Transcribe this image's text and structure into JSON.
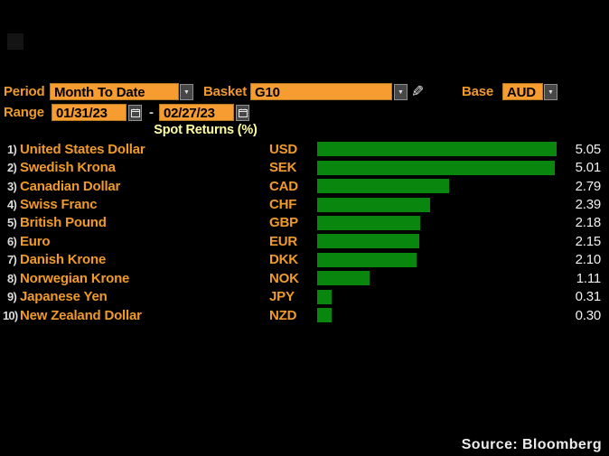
{
  "controls": {
    "dropdown_arrow": "▼",
    "edit_glyph": "✎",
    "period": {
      "label": "Period",
      "value": "Month To Date"
    },
    "basket": {
      "label": "Basket",
      "value": "G10"
    },
    "base": {
      "label": "Base",
      "value": "AUD"
    },
    "range": {
      "label": "Range",
      "start": "01/31/23",
      "separator": "-",
      "end": "02/27/23"
    }
  },
  "chart_data": {
    "type": "bar",
    "orientation": "horizontal",
    "title": "Spot Returns (%)",
    "row_numbers": [
      "1)",
      "2)",
      "3)",
      "4)",
      "5)",
      "6)",
      "7)",
      "8)",
      "9)",
      "10)"
    ],
    "categories": [
      "United States Dollar",
      "Swedish Krona",
      "Canadian Dollar",
      "Swiss Franc",
      "British Pound",
      "Euro",
      "Danish Krone",
      "Norwegian Krone",
      "Japanese Yen",
      "New Zealand Dollar"
    ],
    "codes": [
      "USD",
      "SEK",
      "CAD",
      "CHF",
      "GBP",
      "EUR",
      "DKK",
      "NOK",
      "JPY",
      "NZD"
    ],
    "values": [
      5.05,
      5.01,
      2.79,
      2.39,
      2.18,
      2.15,
      2.1,
      1.11,
      0.31,
      0.3
    ],
    "value_labels": [
      "5.05",
      "5.01",
      "2.79",
      "2.39",
      "2.18",
      "2.15",
      "2.10",
      "1.11",
      "0.31",
      "0.30"
    ],
    "xlim": [
      0,
      5.26
    ],
    "grid": false,
    "legend": null,
    "bar_color": "#08860d",
    "label_color": "#f09a28",
    "value_color": "#f0f0f0",
    "title_color": "#ffffa0"
  },
  "footer": {
    "source": "Source:  Bloomberg"
  }
}
